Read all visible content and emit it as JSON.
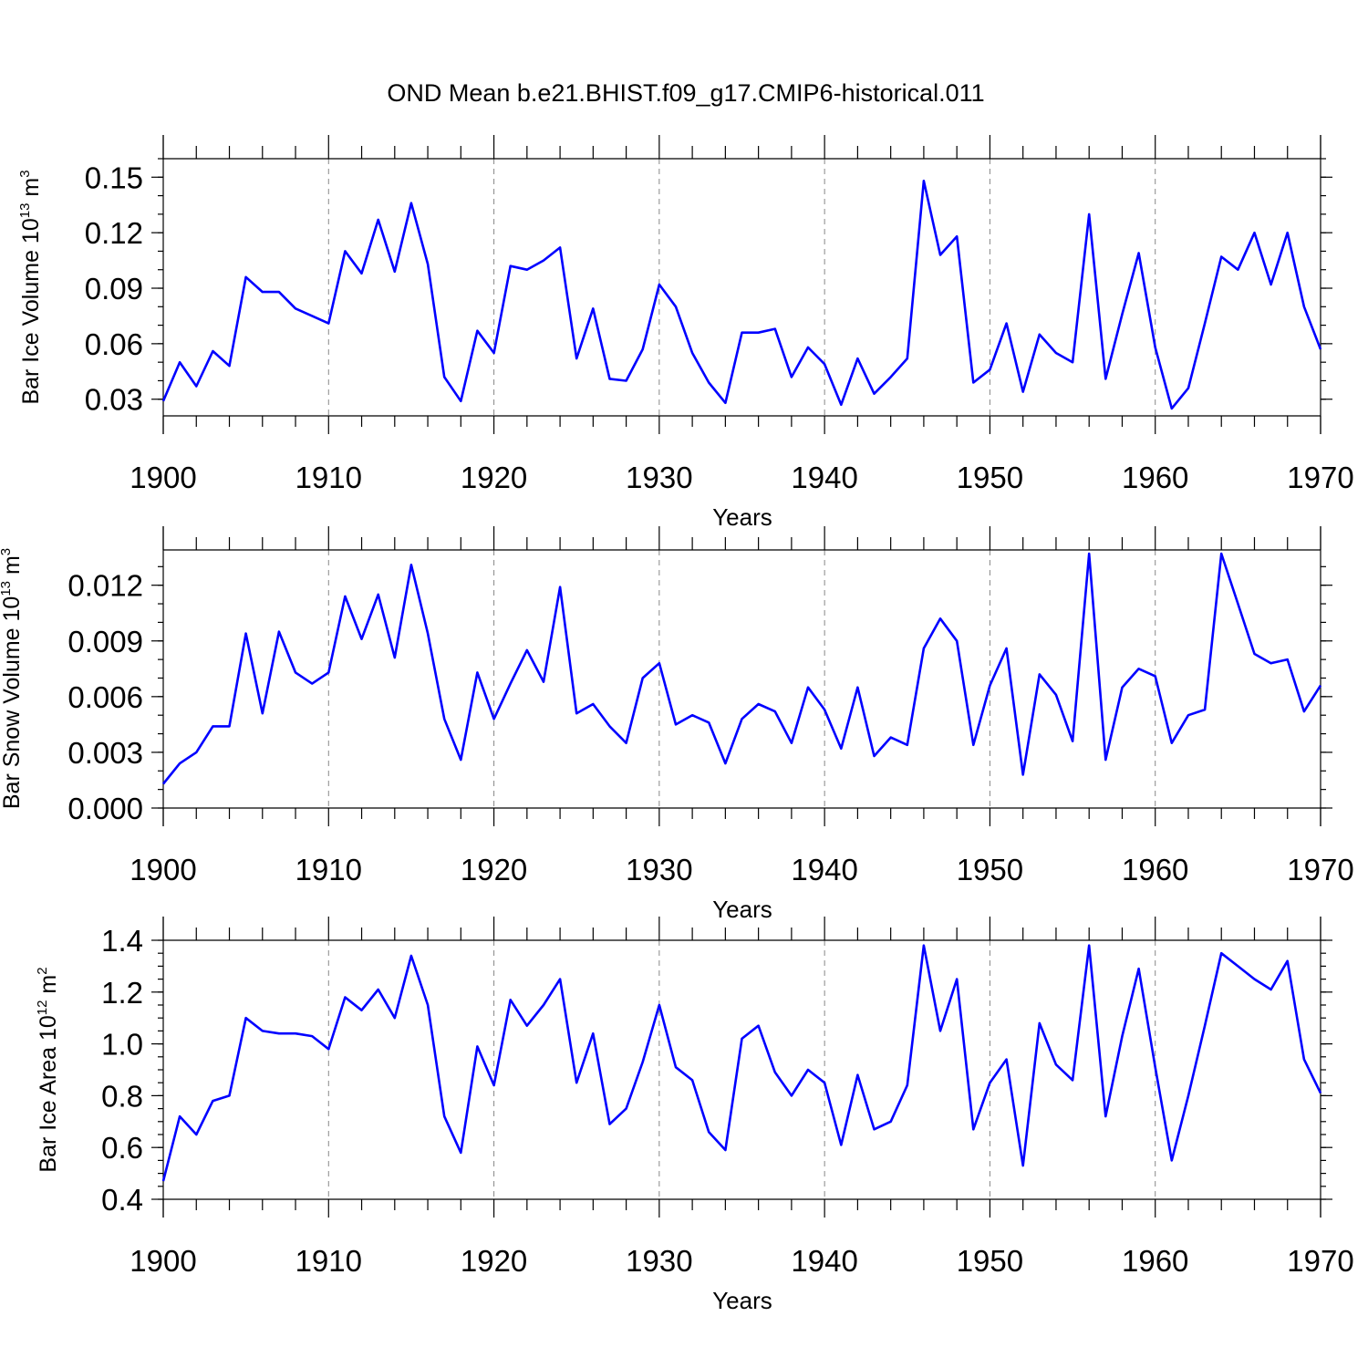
{
  "title": "OND Mean b.e21.BHIST.f09_g17.CMIP6-historical.011",
  "colors": {
    "line": "#0000ff",
    "axis": "#000000",
    "grid": "#888888"
  },
  "chart_data": [
    {
      "type": "line",
      "ylabel_main": "Bar Ice Volume 10",
      "ylabel_exp": "13",
      "ylabel_unit": " m",
      "ylabel_unit_exp": "3",
      "xlabel": "Years",
      "xlim": [
        1900,
        1970
      ],
      "ylim": [
        0.021,
        0.16
      ],
      "yticks": [
        0.03,
        0.06,
        0.09,
        0.12,
        0.15
      ],
      "ytick_labels": [
        "0.03",
        "0.06",
        "0.09",
        "0.12",
        "0.15"
      ],
      "yminor_step": 0.01,
      "xticks": [
        1900,
        1910,
        1920,
        1930,
        1940,
        1950,
        1960,
        1970
      ],
      "xtick_labels": [
        "1900",
        "1910",
        "1920",
        "1930",
        "1940",
        "1950",
        "1960",
        "1970"
      ],
      "grid_x": true,
      "x_start": 1900,
      "values": [
        0.029,
        0.05,
        0.037,
        0.056,
        0.048,
        0.096,
        0.088,
        0.088,
        0.079,
        0.075,
        0.071,
        0.11,
        0.098,
        0.127,
        0.099,
        0.136,
        0.103,
        0.042,
        0.029,
        0.067,
        0.055,
        0.102,
        0.1,
        0.105,
        0.112,
        0.052,
        0.079,
        0.041,
        0.04,
        0.057,
        0.092,
        0.08,
        0.055,
        0.039,
        0.028,
        0.066,
        0.066,
        0.068,
        0.042,
        0.058,
        0.049,
        0.027,
        0.052,
        0.033,
        0.042,
        0.052,
        0.148,
        0.108,
        0.118,
        0.039,
        0.046,
        0.071,
        0.034,
        0.065,
        0.055,
        0.05,
        0.13,
        0.041,
        0.076,
        0.109,
        0.058,
        0.025,
        0.036,
        0.071,
        0.107,
        0.1,
        0.12,
        0.092,
        0.12,
        0.08,
        0.057
      ]
    },
    {
      "type": "line",
      "ylabel_main": "Bar Snow Volume 10",
      "ylabel_exp": "13",
      "ylabel_unit": " m",
      "ylabel_unit_exp": "3",
      "xlabel": "Years",
      "xlim": [
        1900,
        1970
      ],
      "ylim": [
        0.0,
        0.0139
      ],
      "yticks": [
        0.0,
        0.003,
        0.006,
        0.009,
        0.012
      ],
      "ytick_labels": [
        "0.000",
        "0.003",
        "0.006",
        "0.009",
        "0.012"
      ],
      "yminor_step": 0.001,
      "xticks": [
        1900,
        1910,
        1920,
        1930,
        1940,
        1950,
        1960,
        1970
      ],
      "xtick_labels": [
        "1900",
        "1910",
        "1920",
        "1930",
        "1940",
        "1950",
        "1960",
        "1970"
      ],
      "grid_x": true,
      "x_start": 1900,
      "values": [
        0.0013,
        0.0024,
        0.003,
        0.0044,
        0.0044,
        0.0094,
        0.0051,
        0.0095,
        0.0073,
        0.0067,
        0.0073,
        0.0114,
        0.0091,
        0.0115,
        0.0081,
        0.0131,
        0.0094,
        0.0048,
        0.0026,
        0.0073,
        0.0048,
        0.0067,
        0.0085,
        0.0068,
        0.0119,
        0.0051,
        0.0056,
        0.0044,
        0.0035,
        0.007,
        0.0078,
        0.0045,
        0.005,
        0.0046,
        0.0024,
        0.0048,
        0.0056,
        0.0052,
        0.0035,
        0.0065,
        0.0053,
        0.0032,
        0.0065,
        0.0028,
        0.0038,
        0.0034,
        0.0086,
        0.0102,
        0.009,
        0.0034,
        0.0066,
        0.0086,
        0.0018,
        0.0072,
        0.0061,
        0.0036,
        0.0137,
        0.0026,
        0.0065,
        0.0075,
        0.0071,
        0.0035,
        0.005,
        0.0053,
        0.0137,
        0.011,
        0.0083,
        0.0078,
        0.008,
        0.0052,
        0.0066
      ]
    },
    {
      "type": "line",
      "ylabel_main": "Bar Ice Area 10",
      "ylabel_exp": "12",
      "ylabel_unit": " m",
      "ylabel_unit_exp": "2",
      "xlabel": "Years",
      "xlim": [
        1900,
        1970
      ],
      "ylim": [
        0.4,
        1.4
      ],
      "yticks": [
        0.4,
        0.6,
        0.8,
        1.0,
        1.2,
        1.4
      ],
      "ytick_labels": [
        "0.4",
        "0.6",
        "0.8",
        "1.0",
        "1.2",
        "1.4"
      ],
      "yminor_step": 0.05,
      "xticks": [
        1900,
        1910,
        1920,
        1930,
        1940,
        1950,
        1960,
        1970
      ],
      "xtick_labels": [
        "1900",
        "1910",
        "1920",
        "1930",
        "1940",
        "1950",
        "1960",
        "1970"
      ],
      "grid_x": true,
      "x_start": 1900,
      "values": [
        0.47,
        0.72,
        0.65,
        0.78,
        0.8,
        1.1,
        1.05,
        1.04,
        1.04,
        1.03,
        0.98,
        1.18,
        1.13,
        1.21,
        1.1,
        1.34,
        1.15,
        0.72,
        0.58,
        0.99,
        0.84,
        1.17,
        1.07,
        1.15,
        1.25,
        0.85,
        1.04,
        0.69,
        0.75,
        0.93,
        1.15,
        0.91,
        0.86,
        0.66,
        0.59,
        1.02,
        1.07,
        0.89,
        0.8,
        0.9,
        0.85,
        0.61,
        0.88,
        0.67,
        0.7,
        0.84,
        1.38,
        1.05,
        1.25,
        0.67,
        0.85,
        0.94,
        0.53,
        1.08,
        0.92,
        0.86,
        1.38,
        0.72,
        1.03,
        1.29,
        0.91,
        0.55,
        0.8,
        1.07,
        1.35,
        1.3,
        1.25,
        1.21,
        1.32,
        0.94,
        0.81
      ]
    }
  ]
}
